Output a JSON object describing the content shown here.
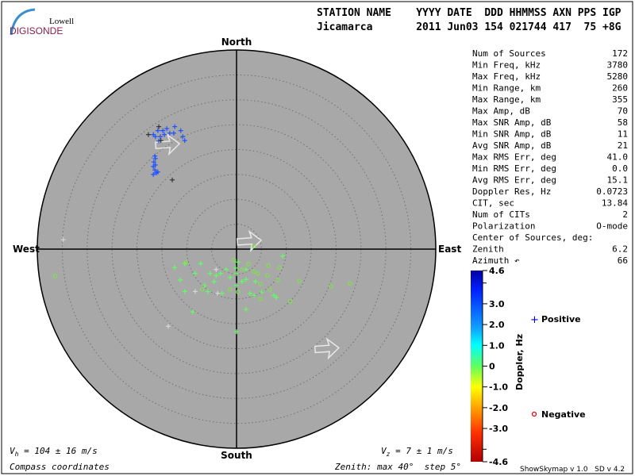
{
  "logo": {
    "line1": "Lowell",
    "line2": "DIGISONDE"
  },
  "header": {
    "labels": "STATION NAME    YYYY DATE  DDD HHMMSS AXN PPS IGP",
    "values": "Jicamarca       2011 Jun03 154 021744 417  75 +8G"
  },
  "compass": {
    "north": "North",
    "south": "South",
    "east": "East",
    "west": "West"
  },
  "stats": [
    {
      "label": "Num of Sources",
      "value": "172"
    },
    {
      "label": "Min Freq, kHz",
      "value": "3780"
    },
    {
      "label": "Max Freq, kHz",
      "value": "5280"
    },
    {
      "label": "Min Range, km",
      "value": "260"
    },
    {
      "label": "Max Range, km",
      "value": "355"
    },
    {
      "label": "Max Amp, dB",
      "value": "70"
    },
    {
      "label": "Max SNR Amp, dB",
      "value": "58"
    },
    {
      "label": "Min SNR Amp, dB",
      "value": "11"
    },
    {
      "label": "Avg SNR Amp, dB",
      "value": "21"
    },
    {
      "label": "Max RMS Err, deg",
      "value": "41.0"
    },
    {
      "label": "Min RMS Err, deg",
      "value": "0.0"
    },
    {
      "label": "Avg RMS Err, deg",
      "value": "15.1"
    },
    {
      "label": "Doppler Res, Hz",
      "value": "0.0723"
    },
    {
      "label": "CIT, sec",
      "value": "13.84"
    },
    {
      "label": "Num of CITs",
      "value": "2"
    },
    {
      "label": "Polarization",
      "value": "O-mode"
    },
    {
      "label": "Center of Sources, deg:",
      "value": ""
    },
    {
      "label": "   Zenith",
      "value": "6.2"
    },
    {
      "label": "   Azimuth ↶",
      "value": "66"
    }
  ],
  "colorbar": {
    "title": "Doppler, Hz",
    "range": [
      -4.6,
      4.6
    ],
    "ticks": [
      "4.6",
      "3.0",
      "2.0",
      "1.0",
      "0",
      "-1.0",
      "-2.0",
      "-3.0",
      "-4.6"
    ],
    "tick_values": [
      4.6,
      3.0,
      2.0,
      1.0,
      0,
      -1.0,
      -2.0,
      -3.0,
      -4.6
    ]
  },
  "legend": {
    "positive": {
      "symbol": "+",
      "label": "Positive",
      "color": "#0000e0"
    },
    "negative": {
      "symbol": "o",
      "label": "Negative",
      "color": "#e00000"
    }
  },
  "footer": {
    "vh": "V",
    "vh_sub": "h",
    "vh_value": " = 104 ± 16 m/s",
    "vz": "V",
    "vz_sub": "z",
    "vz_value": " = 7 ± 1 m/s",
    "coords": "Compass coordinates",
    "zenith": "Zenith: max 40°  step 5°",
    "version": "ShowSkymap v 1.0   SD v 4.2"
  },
  "chart_data": {
    "type": "scatter",
    "projection": "polar skymap, x = east deg, y = north deg (zenith angle)",
    "zenith_max": 40,
    "zenith_step": 5,
    "center_of_sources": {
      "zenith": 6.2,
      "azimuth": 66
    },
    "points": [
      [
        -16.7,
        23.0,
        "+",
        "#1e50ff"
      ],
      [
        -15.8,
        23.8,
        "+",
        "#1e50ff"
      ],
      [
        -14.8,
        23.8,
        "+",
        "#1e50ff"
      ],
      [
        -14.0,
        24.2,
        "+",
        "#1e50ff"
      ],
      [
        -12.4,
        24.6,
        "+",
        "#1e50ff"
      ],
      [
        -11.2,
        23.8,
        "+",
        "#1e50ff"
      ],
      [
        -10.8,
        22.6,
        "+",
        "#1e50ff"
      ],
      [
        -10.4,
        21.8,
        "+",
        "#1e50ff"
      ],
      [
        -16.3,
        22.6,
        "+",
        "#1e50ff"
      ],
      [
        -15.6,
        21.7,
        "+",
        "#1e50ff"
      ],
      [
        -15.3,
        22.6,
        "+",
        "#1e50ff"
      ],
      [
        -13.4,
        23.3,
        "+",
        "#1e50ff"
      ],
      [
        -14.5,
        23.0,
        "+",
        "#1e50ff"
      ],
      [
        -12.6,
        23.3,
        "+",
        "#1e50ff"
      ],
      [
        -16.4,
        18.7,
        "+",
        "#1e50ff"
      ],
      [
        -16.3,
        18.2,
        "+",
        "#1e50ff"
      ],
      [
        -16.6,
        17.5,
        "+",
        "#1e50ff"
      ],
      [
        -16.3,
        16.9,
        "+",
        "#1e50ff"
      ],
      [
        -16.7,
        16.6,
        "+",
        "#1e50ff"
      ],
      [
        -16.4,
        15.9,
        "+",
        "#1e50ff"
      ],
      [
        -16.1,
        15.3,
        "+",
        "#1e50ff"
      ],
      [
        -16.7,
        15.0,
        "+",
        "#1e50ff"
      ],
      [
        -15.8,
        15.5,
        "+",
        "#1e50ff"
      ],
      [
        -17.7,
        23.0,
        "+",
        "#333333"
      ],
      [
        -15.6,
        24.6,
        "+",
        "#333333"
      ],
      [
        -15.2,
        21.8,
        "+",
        "#333333"
      ],
      [
        -12.9,
        13.9,
        "+",
        "#333333"
      ],
      [
        -12.4,
        -3.7,
        "+",
        "#60ff60"
      ],
      [
        -10.4,
        -2.9,
        "+",
        "#60ff60"
      ],
      [
        -11.3,
        -6.2,
        "+",
        "#60ff60"
      ],
      [
        -8.3,
        -4.9,
        "+",
        "#60ff60"
      ],
      [
        -7.2,
        -2.9,
        "+",
        "#60ff60"
      ],
      [
        -5.3,
        -4.9,
        "+",
        "#60ff60"
      ],
      [
        -6.4,
        -7.3,
        "+",
        "#60ff60"
      ],
      [
        -5.7,
        -8.5,
        "+",
        "#60ff60"
      ],
      [
        -4.1,
        -5.3,
        "+",
        "#60ff60"
      ],
      [
        -3.2,
        -4.9,
        "+",
        "#60ff60"
      ],
      [
        -2.1,
        -4.1,
        "+",
        "#60ff60"
      ],
      [
        -1.3,
        -5.7,
        "+",
        "#60ff60"
      ],
      [
        0,
        -4.9,
        "+",
        "#60ff60"
      ],
      [
        1.1,
        -6.5,
        "+",
        "#60ff60"
      ],
      [
        1.9,
        -6.1,
        "+",
        "#60ff60"
      ],
      [
        2.7,
        -8.9,
        "+",
        "#60ff60"
      ],
      [
        3.5,
        -9.3,
        "+",
        "#60ff60"
      ],
      [
        5.1,
        -8.6,
        "+",
        "#60ff60"
      ],
      [
        7.5,
        -9.3,
        "+",
        "#60ff60"
      ],
      [
        8.0,
        -9.7,
        "+",
        "#60ff60"
      ],
      [
        1.9,
        -12.1,
        "+",
        "#60ff60"
      ],
      [
        -8.8,
        -12.6,
        "+",
        "#60ff60"
      ],
      [
        0,
        -16.6,
        "+",
        "#60ff60"
      ],
      [
        -0.2,
        -3.8,
        "+",
        "#60ff60"
      ],
      [
        9.3,
        -1.4,
        "+",
        "#60ff60"
      ],
      [
        -10.4,
        -8.5,
        "+",
        "#60ff60"
      ],
      [
        -2.9,
        -8.9,
        "+",
        "#60ff60"
      ],
      [
        -4.5,
        -6.5,
        "+",
        "#60ff60"
      ],
      [
        1.9,
        -4.1,
        "+",
        "#60ff60"
      ],
      [
        3.8,
        -6.5,
        "+",
        "#60ff60"
      ],
      [
        0,
        -7.3,
        "+",
        "#60ff60"
      ],
      [
        0.3,
        -2.6,
        "+",
        "#60ff60"
      ],
      [
        -10.2,
        -2.7,
        "o",
        "#80e050"
      ],
      [
        -0.5,
        -2.2,
        "o",
        "#80e050"
      ],
      [
        2.4,
        -3.0,
        "o",
        "#80e050"
      ],
      [
        3.5,
        -4.5,
        "o",
        "#80e050"
      ],
      [
        6.4,
        -3.3,
        "o",
        "#80e050"
      ],
      [
        6.2,
        -5.3,
        "o",
        "#80e050"
      ],
      [
        4.3,
        -4.9,
        "o",
        "#80e050"
      ],
      [
        8.6,
        -3.7,
        "o",
        "#80e050"
      ],
      [
        8.3,
        -6.2,
        "o",
        "#80e050"
      ],
      [
        4.8,
        -7.0,
        "o",
        "#80e050"
      ],
      [
        6.7,
        -8.1,
        "o",
        "#80e050"
      ],
      [
        12.6,
        -6.4,
        "o",
        "#80e050"
      ],
      [
        19.0,
        -7.5,
        "o",
        "#80e050"
      ],
      [
        22.8,
        -6.9,
        "o",
        "#80e050"
      ],
      [
        10.8,
        -10.5,
        "o",
        "#80e050"
      ],
      [
        4.8,
        -10.0,
        "o",
        "#80e050"
      ],
      [
        0.3,
        -8.6,
        "o",
        "#80e050"
      ],
      [
        -1.3,
        -8.1,
        "o",
        "#80e050"
      ],
      [
        -6.9,
        -8.1,
        "o",
        "#80e050"
      ],
      [
        -36.4,
        -5.4,
        "o",
        "#80e050"
      ],
      [
        3.5,
        0.6,
        "o",
        "#80e050"
      ],
      [
        1.1,
        -4.1,
        "o",
        "#80e050"
      ],
      [
        -34.8,
        1.9,
        "+",
        "#d8d8d8"
      ],
      [
        -13.7,
        -15.5,
        "+",
        "#d8d8d8"
      ],
      [
        -4.1,
        -4.1,
        "+",
        "#d8d8d8"
      ],
      [
        -8.3,
        -8.5,
        "+",
        "#d8d8d8"
      ],
      [
        -3.8,
        -8.9,
        "+",
        "#d8d8d8"
      ]
    ],
    "velocity_arrows": [
      {
        "x": 2.4,
        "y": 1.6
      },
      {
        "x": 18.0,
        "y": -20.0
      },
      {
        "x": -14.0,
        "y": 21.0
      }
    ],
    "colors": {
      "background_disc": "#a8a8a8",
      "grid": "#707070"
    }
  }
}
